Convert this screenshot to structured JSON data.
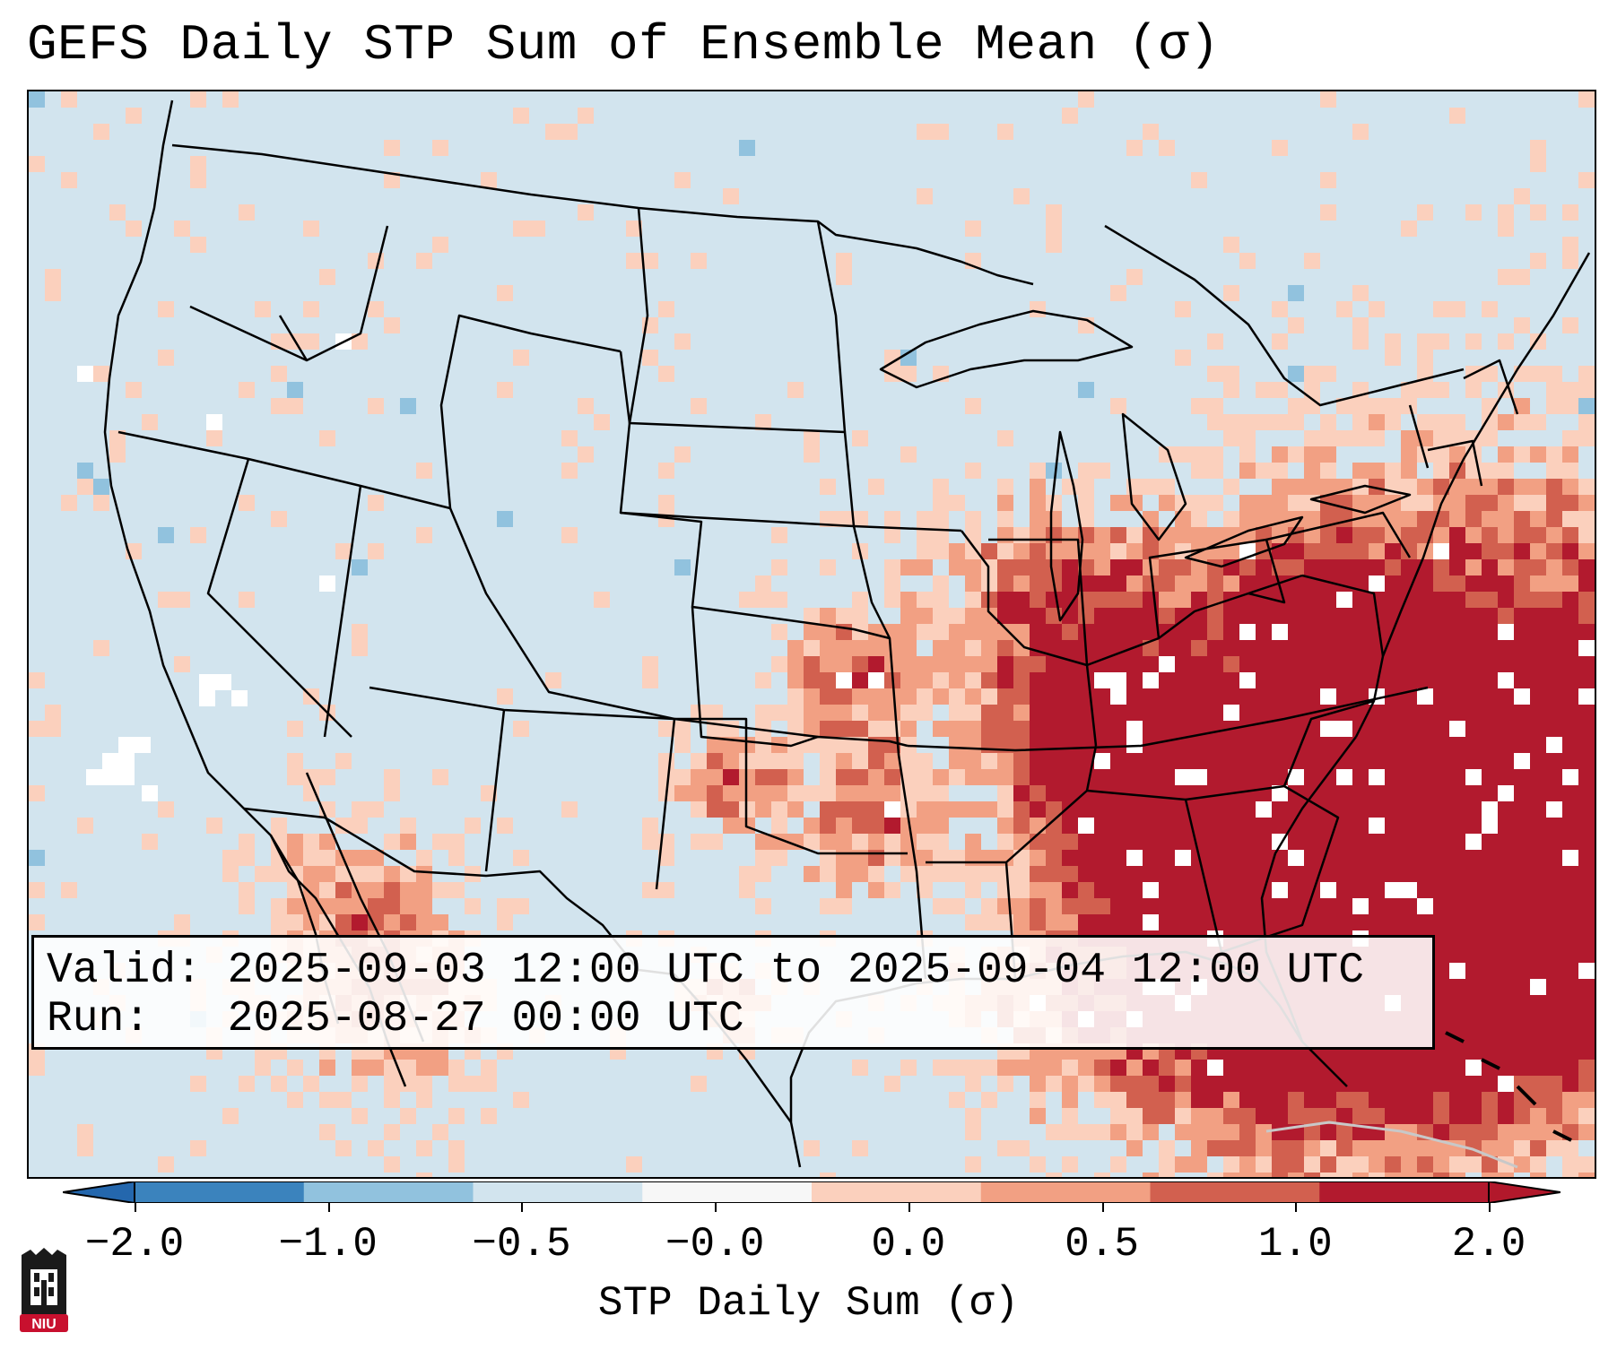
{
  "title": "GEFS Daily STP Sum of Ensemble Mean (σ)",
  "info": {
    "valid_line": "Valid: 2025-09-03 12:00 UTC to 2025-09-04 12:00 UTC",
    "run_line": "Run:   2025-08-27 00:00 UTC"
  },
  "colorbar": {
    "label": "STP Daily Sum (σ)",
    "ticks": [
      "−2.0",
      "−1.0",
      "−0.5",
      "−0.0",
      "0.0",
      "0.5",
      "1.0",
      "2.0"
    ],
    "colors": [
      "#3b83bd",
      "#91c2de",
      "#d2e4ee",
      "#f7f7f7",
      "#fbd0bd",
      "#f2a083",
      "#d2604f",
      "#b21a2e"
    ],
    "extend_low_color": "#2467ad",
    "extend_high_color": "#b2182b"
  },
  "map": {
    "background_color": "#d2e4ee",
    "projection": "Lambert Conformal (CONUS)",
    "legend_levels": {
      "light": "#fbd0bd",
      "medium": "#f2a083",
      "strong": "#d2604f",
      "extreme": "#b21a2e",
      "negative_light": "#91c2de",
      "neutral": "#ffffff"
    }
  },
  "logo": {
    "text": "NIU",
    "color": "#c8102e"
  }
}
